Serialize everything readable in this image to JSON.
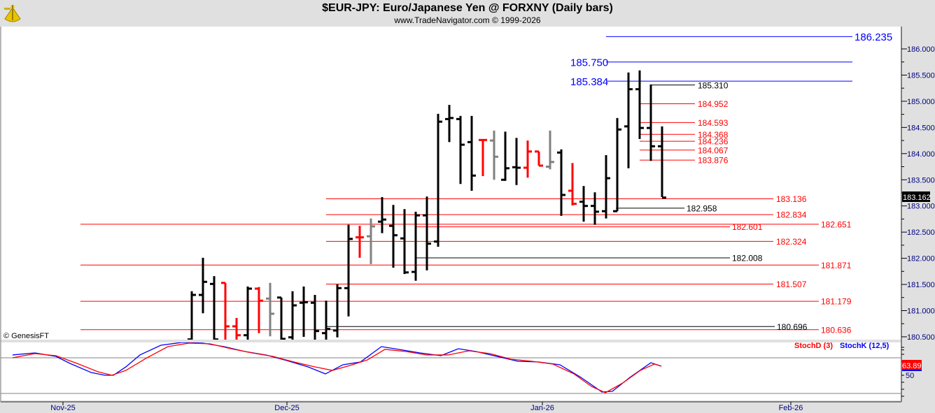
{
  "header": {
    "title": "$EUR-JPY:  Euro/Japanese Yen @ FORXNY  (Daily bars)",
    "subtitle": "www.TradeNavigator.com © 1999-2026",
    "logo_icon": "sextant-icon"
  },
  "copyright": "© GenesisFT",
  "colors": {
    "up": "#000000",
    "down": "#ff0000",
    "neutral": "#808080",
    "blue": "#0000ff",
    "red": "#ff0000",
    "black": "#000000",
    "panel": "#e0e0e0"
  },
  "chart_data": [
    {
      "type": "ohlc",
      "title": "$EUR-JPY Daily bars",
      "ylim": [
        180.45,
        186.4
      ],
      "y_ticks": [
        "186.000",
        "185.500",
        "185.000",
        "184.500",
        "184.000",
        "183.500",
        "183.000",
        "182.500",
        "182.000",
        "181.500",
        "181.000",
        "180.500"
      ],
      "x_labels": [
        "Nov-25",
        "Dec-25",
        "Jan-26",
        "Feb-26"
      ],
      "last_price": "183.162",
      "bars": [
        {
          "o": 180.45,
          "h": 181.37,
          "l": 180.3,
          "c": 181.3,
          "color": "up"
        },
        {
          "o": 181.3,
          "h": 182.01,
          "l": 180.95,
          "c": 181.55,
          "color": "up"
        },
        {
          "o": 181.51,
          "h": 181.66,
          "l": 180.3,
          "c": 180.45,
          "color": "up"
        },
        {
          "o": 181.53,
          "h": 181.53,
          "l": 180.3,
          "c": 180.7,
          "color": "down"
        },
        {
          "o": 180.7,
          "h": 180.86,
          "l": 180.3,
          "c": 180.53,
          "color": "down"
        },
        {
          "o": 180.53,
          "h": 181.46,
          "l": 180.3,
          "c": 181.42,
          "color": "up"
        },
        {
          "o": 181.42,
          "h": 181.45,
          "l": 180.57,
          "c": 181.19,
          "color": "down"
        },
        {
          "o": 181.23,
          "h": 181.53,
          "l": 180.51,
          "c": 180.94,
          "color": "neutral"
        },
        {
          "o": 181.25,
          "h": 181.25,
          "l": 180.3,
          "c": 180.46,
          "color": "up"
        },
        {
          "o": 180.49,
          "h": 181.37,
          "l": 180.3,
          "c": 181.1,
          "color": "up"
        },
        {
          "o": 181.15,
          "h": 181.46,
          "l": 180.5,
          "c": 181.16,
          "color": "up"
        },
        {
          "o": 181.15,
          "h": 181.3,
          "l": 180.3,
          "c": 180.61,
          "color": "up"
        },
        {
          "o": 180.57,
          "h": 181.19,
          "l": 180.3,
          "c": 180.65,
          "color": "up"
        },
        {
          "o": 180.62,
          "h": 181.5,
          "l": 180.49,
          "c": 181.43,
          "color": "up"
        },
        {
          "o": 181.43,
          "h": 182.64,
          "l": 180.89,
          "c": 182.37,
          "color": "up"
        },
        {
          "o": 182.4,
          "h": 182.62,
          "l": 182.01,
          "c": 182.4,
          "color": "down"
        },
        {
          "o": 182.42,
          "h": 182.76,
          "l": 181.89,
          "c": 182.61,
          "color": "neutral"
        },
        {
          "o": 182.7,
          "h": 183.17,
          "l": 182.48,
          "c": 182.74,
          "color": "up"
        },
        {
          "o": 182.62,
          "h": 183.02,
          "l": 181.82,
          "c": 182.44,
          "color": "up"
        },
        {
          "o": 182.38,
          "h": 182.94,
          "l": 181.7,
          "c": 181.73,
          "color": "up"
        },
        {
          "o": 181.74,
          "h": 182.89,
          "l": 181.57,
          "c": 182.82,
          "color": "up"
        },
        {
          "o": 182.82,
          "h": 183.18,
          "l": 181.77,
          "c": 182.28,
          "color": "up"
        },
        {
          "o": 182.32,
          "h": 184.76,
          "l": 182.22,
          "c": 184.61,
          "color": "up"
        },
        {
          "o": 184.66,
          "h": 184.93,
          "l": 184.22,
          "c": 184.68,
          "color": "up"
        },
        {
          "o": 184.66,
          "h": 184.72,
          "l": 183.42,
          "c": 184.17,
          "color": "up"
        },
        {
          "o": 184.22,
          "h": 184.72,
          "l": 183.29,
          "c": 183.58,
          "color": "up"
        },
        {
          "o": 184.26,
          "h": 184.26,
          "l": 183.57,
          "c": 184.26,
          "color": "down"
        },
        {
          "o": 184.25,
          "h": 184.44,
          "l": 183.5,
          "c": 183.94,
          "color": "neutral"
        },
        {
          "o": 183.5,
          "h": 184.42,
          "l": 183.48,
          "c": 183.72,
          "color": "up"
        },
        {
          "o": 183.74,
          "h": 184.3,
          "l": 183.4,
          "c": 183.73,
          "color": "up"
        },
        {
          "o": 183.73,
          "h": 184.25,
          "l": 183.54,
          "c": 184.04,
          "color": "down"
        },
        {
          "o": 184.04,
          "h": 184.04,
          "l": 183.77,
          "c": 183.77,
          "color": "down"
        },
        {
          "o": 183.75,
          "h": 184.44,
          "l": 183.7,
          "c": 183.84,
          "color": "neutral"
        },
        {
          "o": 184.02,
          "h": 184.08,
          "l": 182.81,
          "c": 183.21,
          "color": "up"
        },
        {
          "o": 183.29,
          "h": 183.82,
          "l": 183.01,
          "c": 183.04,
          "color": "down"
        },
        {
          "o": 183.08,
          "h": 183.38,
          "l": 182.7,
          "c": 183.0,
          "color": "up"
        },
        {
          "o": 183.0,
          "h": 183.26,
          "l": 182.64,
          "c": 182.89,
          "color": "up"
        },
        {
          "o": 182.9,
          "h": 183.97,
          "l": 182.76,
          "c": 183.53,
          "color": "up"
        },
        {
          "o": 182.9,
          "h": 184.68,
          "l": 182.9,
          "c": 184.46,
          "color": "up"
        },
        {
          "o": 184.52,
          "h": 185.55,
          "l": 183.72,
          "c": 185.23,
          "color": "up"
        },
        {
          "o": 185.23,
          "h": 185.59,
          "l": 184.28,
          "c": 184.49,
          "color": "up"
        },
        {
          "o": 184.49,
          "h": 185.32,
          "l": 183.86,
          "c": 184.14,
          "color": "up"
        },
        {
          "o": 184.14,
          "h": 184.52,
          "l": 183.17,
          "c": 183.16,
          "color": "up"
        }
      ],
      "levels": [
        {
          "price": 186.235,
          "label": "186.235",
          "color": "blue"
        },
        {
          "price": 185.75,
          "label": "185.750",
          "color": "blue"
        },
        {
          "price": 185.384,
          "label": "185.384",
          "color": "blue"
        },
        {
          "price": 185.31,
          "label": "185.310",
          "color": "black"
        },
        {
          "price": 184.952,
          "label": "184.952",
          "color": "red"
        },
        {
          "price": 184.593,
          "label": "184.593",
          "color": "red"
        },
        {
          "price": 184.368,
          "label": "184.368",
          "color": "red"
        },
        {
          "price": 184.236,
          "label": "184.236",
          "color": "red"
        },
        {
          "price": 184.067,
          "label": "184.067",
          "color": "red"
        },
        {
          "price": 183.876,
          "label": "183.876",
          "color": "red"
        },
        {
          "price": 183.136,
          "label": "183.136",
          "color": "red"
        },
        {
          "price": 182.958,
          "label": "182.958",
          "color": "black"
        },
        {
          "price": 182.834,
          "label": "182.834",
          "color": "red"
        },
        {
          "price": 182.651,
          "label": "182.651",
          "color": "red"
        },
        {
          "price": 182.601,
          "label": "182.601",
          "color": "red"
        },
        {
          "price": 182.324,
          "label": "182.324",
          "color": "red"
        },
        {
          "price": 182.008,
          "label": "182.008",
          "color": "black"
        },
        {
          "price": 181.871,
          "label": "181.871",
          "color": "red"
        },
        {
          "price": 181.507,
          "label": "181.507",
          "color": "red"
        },
        {
          "price": 181.179,
          "label": "181.179",
          "color": "red"
        },
        {
          "price": 180.696,
          "label": "180.696",
          "color": "black"
        },
        {
          "price": 180.636,
          "label": "180.636",
          "color": "red"
        }
      ]
    },
    {
      "type": "line",
      "title": "Stochastic",
      "ylim": [
        0,
        100
      ],
      "y_ticks": [
        "50"
      ],
      "last_value": "63.89",
      "series": [
        {
          "name": "StochD (3)",
          "color": "red",
          "x": [
            -16,
            -14,
            -12.13,
            -10.25,
            -8.38,
            -7.13,
            -5.88,
            -4,
            -2.13,
            -0.25,
            1.63,
            3.5,
            5.38,
            7.25,
            9.13,
            11,
            12.56,
            14.13,
            15.69,
            17.25,
            19.13,
            21,
            22.88,
            24.75,
            26.63,
            28.5,
            30.38,
            32.25,
            34.13,
            35.69,
            36.94,
            38.5,
            40.06,
            41.31,
            41.94
          ],
          "y": [
            76.6,
            83.0,
            79.8,
            68.1,
            55.3,
            50.0,
            57.4,
            76.6,
            93.6,
            98.9,
            97.9,
            90.4,
            84.0,
            78.7,
            70.2,
            62.8,
            57.4,
            64.9,
            73.4,
            89.4,
            86.2,
            80.9,
            80.9,
            87.2,
            83.0,
            74.5,
            71.3,
            67.0,
            52.1,
            33.0,
            23.4,
            38.3,
            57.4,
            67.0,
            63.89
          ]
        },
        {
          "name": "StochK (12,5)",
          "color": "blue",
          "x": [
            -16,
            -14,
            -12.13,
            -10.88,
            -9,
            -7.75,
            -7,
            -5.88,
            -4.63,
            -2.75,
            -0.88,
            1,
            2.88,
            4.75,
            6.63,
            8.5,
            10.38,
            11.94,
            13.5,
            15.06,
            16.94,
            18.5,
            20.38,
            22.25,
            23.81,
            25.38,
            27.25,
            29.13,
            31,
            32.88,
            34.75,
            36.63,
            37.56,
            39.13,
            41,
            41.94
          ],
          "y": [
            80.9,
            84.0,
            78.7,
            68.1,
            54.3,
            50.0,
            50.0,
            62.8,
            80.9,
            95.7,
            100,
            98.9,
            93.6,
            86.2,
            80.9,
            72.3,
            62.8,
            52.1,
            66.0,
            70.2,
            93.6,
            89.4,
            84.0,
            79.8,
            90.4,
            86.2,
            78.7,
            71.3,
            70.2,
            66.0,
            46.8,
            24.5,
            25.5,
            46.8,
            69.1,
            63.8
          ]
        }
      ]
    }
  ]
}
